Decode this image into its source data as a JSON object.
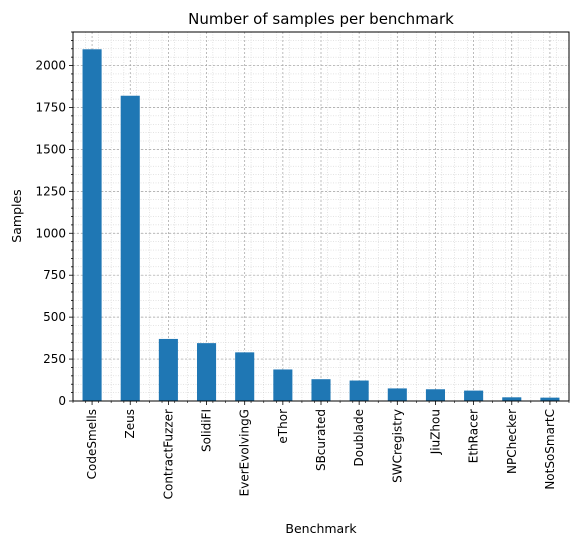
{
  "chart_data": {
    "type": "bar",
    "title": "Number of samples per benchmark",
    "xlabel": "Benchmark",
    "ylabel": "Samples",
    "categories": [
      "CodeSmells",
      "Zeus",
      "ContractFuzzer",
      "SolidiFI",
      "EverEvolvingG",
      "eThor",
      "SBcurated",
      "Doublade",
      "SWCregistry",
      "JiuZhou",
      "EthRacer",
      "NPChecker",
      "NotSoSmartC"
    ],
    "values": [
      2097,
      1820,
      370,
      345,
      290,
      188,
      130,
      122,
      75,
      70,
      62,
      22,
      20
    ],
    "ylim": [
      0,
      2200
    ],
    "yticks": [
      0,
      250,
      500,
      750,
      1000,
      1250,
      1500,
      1750,
      2000
    ],
    "grid": true,
    "minor_grid": true,
    "legend": "none",
    "bar_color": "#1f77b4"
  }
}
